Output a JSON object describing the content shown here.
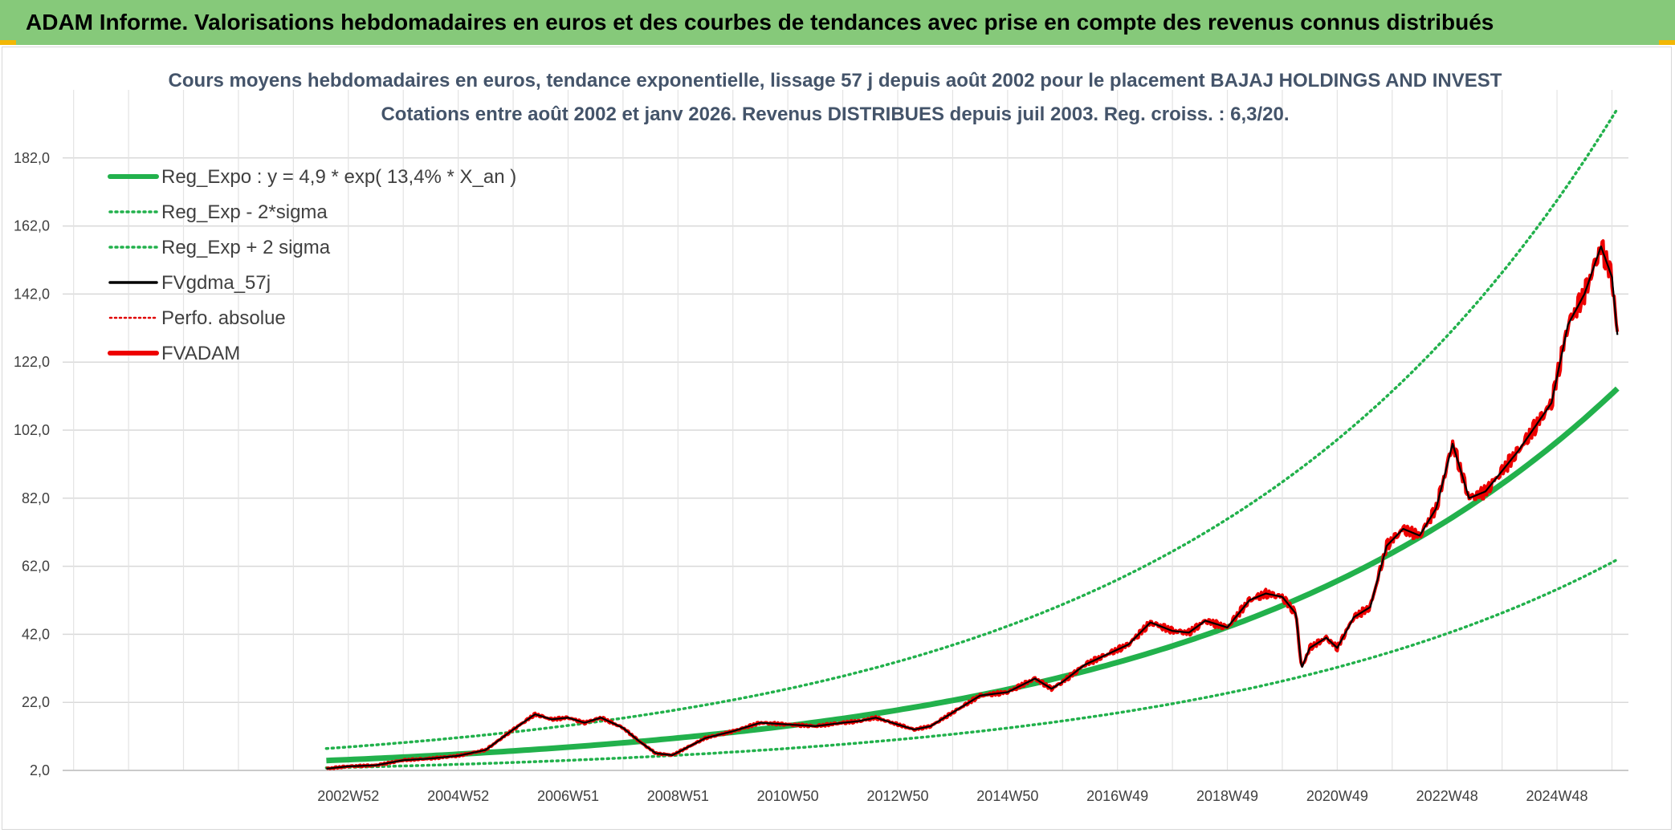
{
  "banner": {
    "title": "ADAM Informe. Valorisations hebdomadaires en euros et des courbes de tendances avec prise en compte des revenus connus distribués"
  },
  "chart_data": {
    "type": "line",
    "title": "Cours moyens hebdomadaires en euros, tendance exponentielle, lissage 57 j depuis août 2002 pour le placement BAJAJ HOLDINGS AND INVEST",
    "subtitle": "Cotations entre août 2002 et janv 2026. Revenus DISTRIBUES depuis juil 2003. Reg. croiss. : 6,3/20.",
    "xlabel": "",
    "ylabel": "",
    "ylim": [
      2,
      202
    ],
    "xlim": [
      1997.8,
      2026.3
    ],
    "y_ticks": [
      "2,0",
      "22,0",
      "42,0",
      "62,0",
      "82,0",
      "102,0",
      "122,0",
      "142,0",
      "162,0",
      "182,0"
    ],
    "y_tick_values": [
      2,
      22,
      42,
      62,
      82,
      102,
      122,
      142,
      162,
      182
    ],
    "x_ticks": [
      "2002W52",
      "2004W52",
      "2006W51",
      "2008W51",
      "2010W50",
      "2012W50",
      "2014W50",
      "2016W49",
      "2018W49",
      "2020W49",
      "2022W48",
      "2024W48"
    ],
    "x_tick_values": [
      2003.0,
      2005.0,
      2007.0,
      2009.0,
      2011.0,
      2013.0,
      2015.0,
      2017.0,
      2019.0,
      2021.0,
      2023.0,
      2025.0
    ],
    "legend_position": "top-left",
    "trend": {
      "a": 4.9,
      "r": 0.134,
      "t0": 2002.6,
      "x_end": 2026.1,
      "upper_factor": 1.72,
      "lower_factor": 0.56
    },
    "series": [
      {
        "name": "Reg_Expo : y = 4,9 * exp( 13,4% *  X_an )",
        "color": "#22b14c",
        "style": "solid-thick"
      },
      {
        "name": "Reg_Exp - 2*sigma",
        "color": "#22b14c",
        "style": "dotted"
      },
      {
        "name": "Reg_Exp + 2 sigma",
        "color": "#22b14c",
        "style": "dotted"
      },
      {
        "name": "FVgdma_57j",
        "color": "#000000",
        "style": "solid"
      },
      {
        "name": "Perfo. absolue",
        "color": "#e00000",
        "style": "dotted"
      },
      {
        "name": "FVADAM",
        "color": "#ee0000",
        "style": "solid-thick",
        "x": [
          2002.6,
          2003.0,
          2003.5,
          2004.0,
          2004.5,
          2005.0,
          2005.5,
          2006.0,
          2006.4,
          2006.7,
          2007.0,
          2007.3,
          2007.6,
          2008.0,
          2008.3,
          2008.6,
          2008.9,
          2009.2,
          2009.5,
          2010.0,
          2010.5,
          2011.0,
          2011.5,
          2012.0,
          2012.3,
          2012.6,
          2013.0,
          2013.3,
          2013.6,
          2014.0,
          2014.5,
          2015.0,
          2015.5,
          2015.8,
          2016.0,
          2016.4,
          2016.8,
          2017.2,
          2017.6,
          2018.0,
          2018.3,
          2018.6,
          2019.0,
          2019.4,
          2019.7,
          2020.0,
          2020.25,
          2020.35,
          2020.5,
          2020.8,
          2021.0,
          2021.3,
          2021.6,
          2021.9,
          2022.2,
          2022.5,
          2022.8,
          2023.1,
          2023.4,
          2023.7,
          2024.0,
          2024.3,
          2024.6,
          2024.9,
          2025.2,
          2025.5,
          2025.8,
          2026.0,
          2026.1
        ],
        "values": [
          2.5,
          3.2,
          3.5,
          5.0,
          5.5,
          6.3,
          8.0,
          14.0,
          18.5,
          17.0,
          17.5,
          16.0,
          17.5,
          14.5,
          10.5,
          7.0,
          6.5,
          9.0,
          11.5,
          13.5,
          16.0,
          15.5,
          15.0,
          16.0,
          16.5,
          17.5,
          15.5,
          14.0,
          15.0,
          19.0,
          24.0,
          25.0,
          29.0,
          26.0,
          28.0,
          33.0,
          36.0,
          39.0,
          45.5,
          43.0,
          42.5,
          46.0,
          44.0,
          52.0,
          54.0,
          53.0,
          48.0,
          32.0,
          38.0,
          41.0,
          38.0,
          47.0,
          50.0,
          68.0,
          73.0,
          71.0,
          79.0,
          98.0,
          82.0,
          84.0,
          90.0,
          96.0,
          103.0,
          110.0,
          133.0,
          142.0,
          156.0,
          147.0,
          130.0
        ]
      }
    ]
  }
}
